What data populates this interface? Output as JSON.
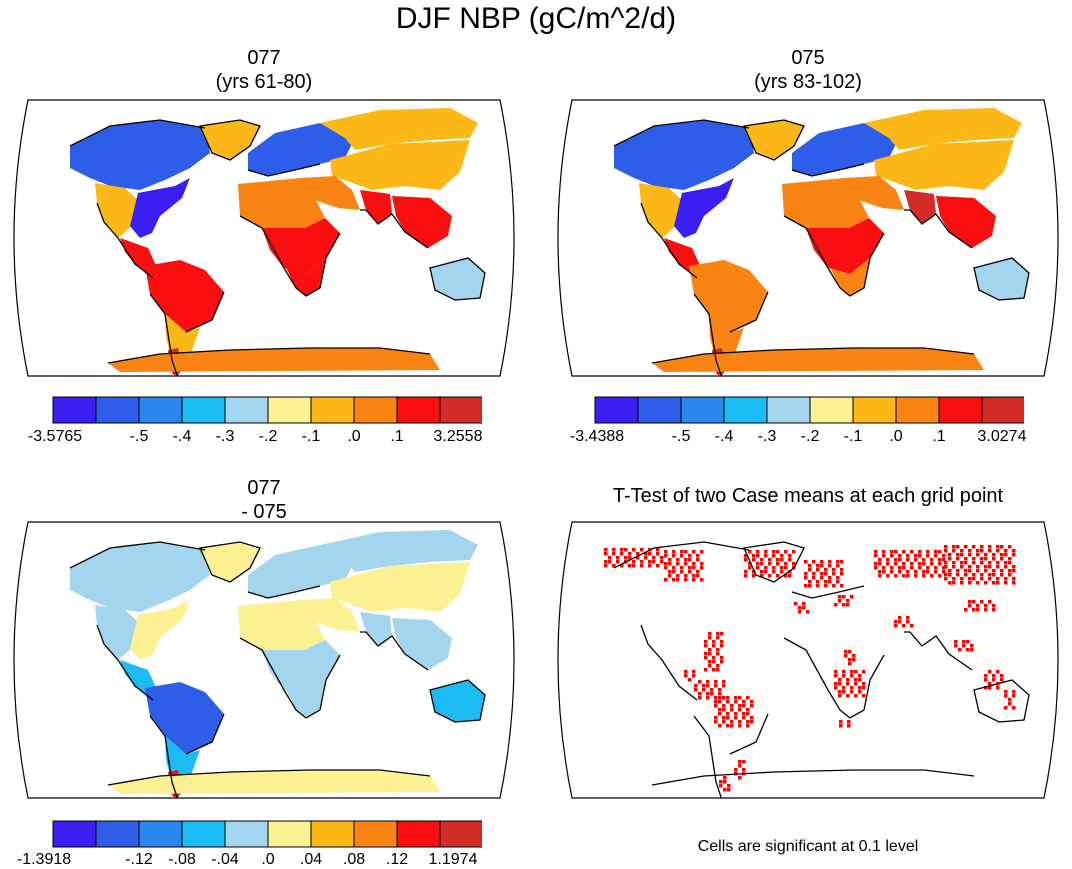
{
  "figure_title": "DJF NBP (gC/m^2/d)",
  "colors": {
    "palette": [
      "#3a1ef2",
      "#2e5ee8",
      "#2b86ee",
      "#1bbcf3",
      "#a3d5ee",
      "#fbf192",
      "#fbb816",
      "#f98413",
      "#f90f0f",
      "#d22c26"
    ],
    "land_outline": "#000000",
    "significant": "#ff0000"
  },
  "panels": [
    {
      "id": "p1",
      "title_line1": "077",
      "title_line2": "(yrs 61-80)",
      "labels": [
        "-3.5765",
        "-.5",
        "-.4",
        "-.3",
        "-.2",
        "-.1",
        ".0",
        ".1",
        "3.2558"
      ],
      "regions": {
        "na_north": 1,
        "na_east": 0,
        "na_west": 6,
        "greenland": 6,
        "central_am": 8,
        "sa_north": 8,
        "sa_south": 6,
        "patagonia": 9,
        "europe": 1,
        "siberia": 6,
        "asia_central": 6,
        "middle_east": 7,
        "india": 8,
        "se_asia": 8,
        "africa_north": 7,
        "africa_central": 8,
        "africa_south": 8,
        "australia": 4,
        "antarctica": 7
      }
    },
    {
      "id": "p2",
      "title_line1": "075",
      "title_line2": "(yrs 83-102)",
      "labels": [
        "-3.4388",
        "-.5",
        "-.4",
        "-.3",
        "-.2",
        "-.1",
        ".0",
        ".1",
        "3.0274"
      ],
      "regions": {
        "na_north": 1,
        "na_east": 0,
        "na_west": 6,
        "greenland": 6,
        "central_am": 8,
        "sa_north": 7,
        "sa_south": 7,
        "patagonia": 9,
        "europe": 1,
        "siberia": 6,
        "asia_central": 6,
        "middle_east": 7,
        "india": 9,
        "se_asia": 8,
        "africa_north": 7,
        "africa_central": 8,
        "africa_south": 7,
        "australia": 4,
        "antarctica": 7
      }
    },
    {
      "id": "p3",
      "title_line1": "077",
      "title_line2": "- 075",
      "labels": [
        "-1.3918",
        "-.12",
        "-.08",
        "-.04",
        ".0",
        ".04",
        ".08",
        ".12",
        "1.1974"
      ],
      "regions": {
        "na_north": 4,
        "na_east": 5,
        "na_west": 4,
        "greenland": 5,
        "central_am": 3,
        "sa_north": 1,
        "sa_south": 3,
        "patagonia": 8,
        "europe": 4,
        "siberia": 4,
        "asia_central": 5,
        "middle_east": 5,
        "india": 4,
        "se_asia": 4,
        "africa_north": 5,
        "africa_central": 4,
        "africa_south": 4,
        "australia": 3,
        "antarctica": 5
      }
    }
  ],
  "ttest": {
    "title": "T-Test of two Case means at each grid point",
    "note": "Cells are significant at 0.1 level"
  }
}
